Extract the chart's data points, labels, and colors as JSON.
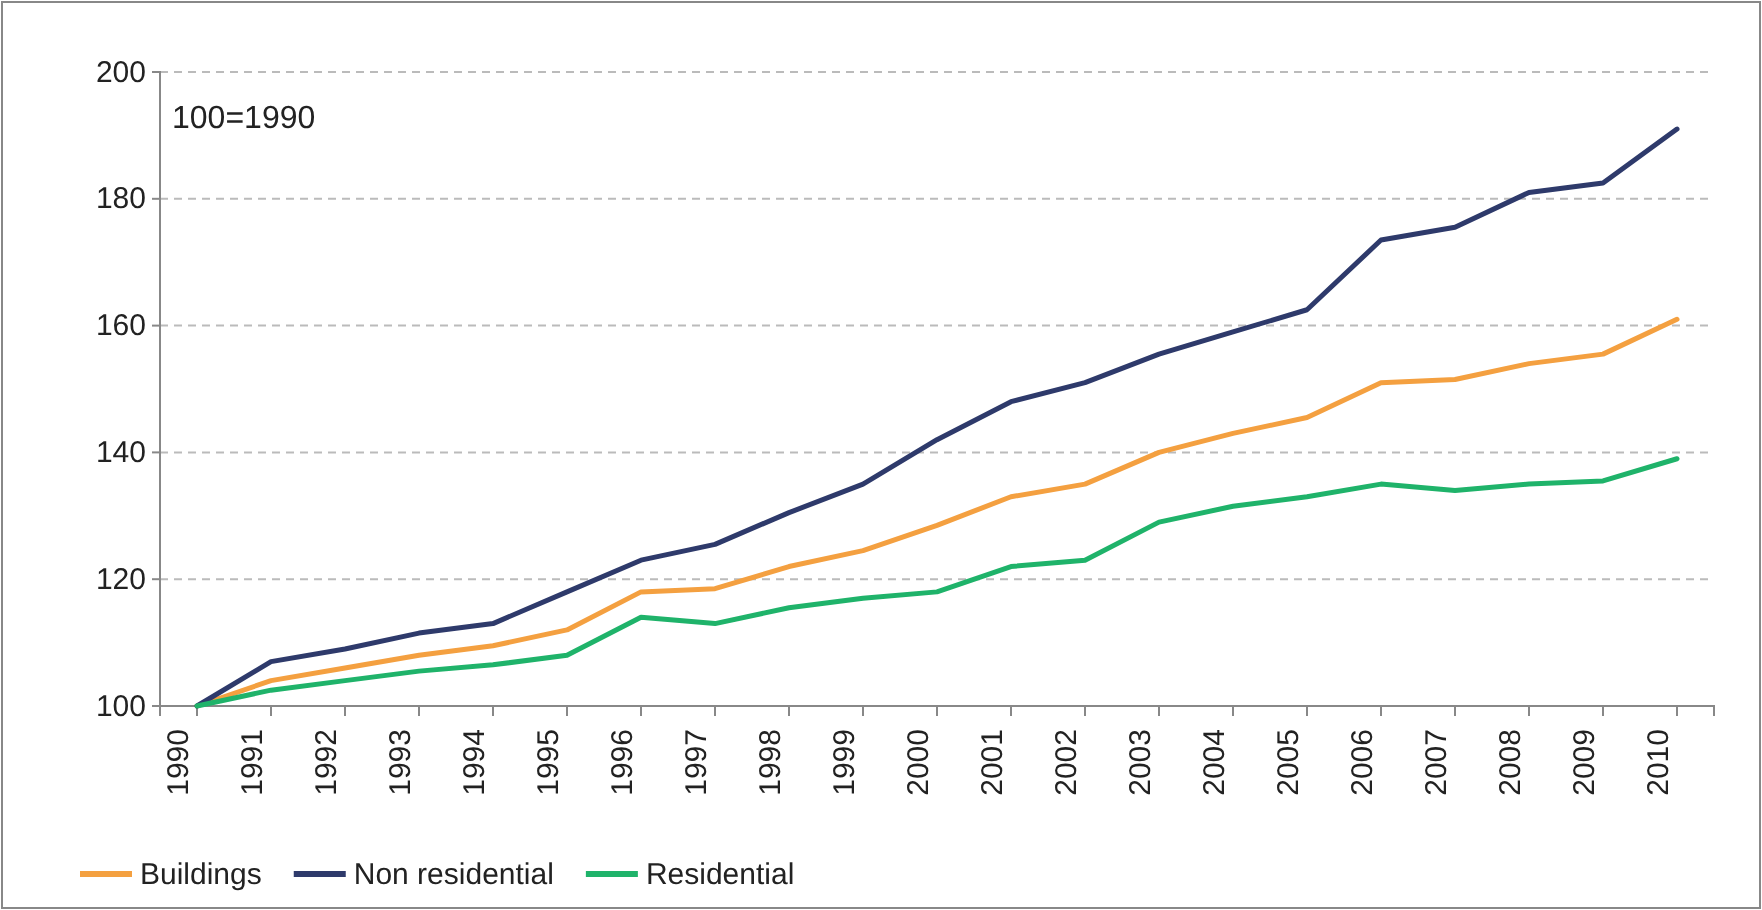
{
  "chart_data": {
    "type": "line",
    "categories": [
      "1990",
      "1991",
      "1992",
      "1993",
      "1994",
      "1995",
      "1996",
      "1997",
      "1998",
      "1999",
      "2000",
      "2001",
      "2002",
      "2003",
      "2004",
      "2005",
      "2006",
      "2007",
      "2008",
      "2009",
      "2010"
    ],
    "series": [
      {
        "name": "Buildings",
        "color": "#f4a040",
        "values": [
          100,
          104,
          106,
          108,
          109.5,
          112,
          118,
          118.5,
          122,
          124.5,
          128.5,
          133,
          135,
          140,
          143,
          145.5,
          151,
          151.5,
          154,
          155.5,
          161
        ]
      },
      {
        "name": "Non residential",
        "color": "#2e3a6b",
        "values": [
          100,
          107,
          109,
          111.5,
          113,
          118,
          123,
          125.5,
          130.5,
          135,
          142,
          148,
          151,
          155.5,
          159,
          162.5,
          173.5,
          175.5,
          181,
          182.5,
          191
        ]
      },
      {
        "name": "Residential",
        "color": "#1fb36a",
        "values": [
          100,
          102.5,
          104,
          105.5,
          106.5,
          108,
          114,
          113,
          115.5,
          117,
          118,
          122,
          123,
          129,
          131.5,
          133,
          135,
          134,
          135,
          135.5,
          139
        ]
      }
    ],
    "ylim": [
      100,
      200
    ],
    "yticks": [
      100,
      120,
      140,
      160,
      180,
      200
    ],
    "grid": "y",
    "legend": "bottom left",
    "annotations": [
      "100=1990"
    ]
  }
}
